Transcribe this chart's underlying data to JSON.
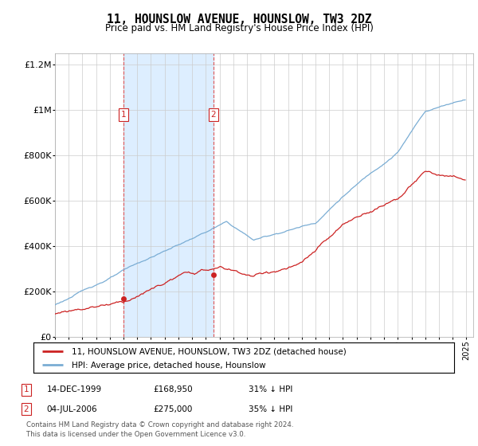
{
  "title": "11, HOUNSLOW AVENUE, HOUNSLOW, TW3 2DZ",
  "subtitle": "Price paid vs. HM Land Registry's House Price Index (HPI)",
  "legend_line1": "11, HOUNSLOW AVENUE, HOUNSLOW, TW3 2DZ (detached house)",
  "legend_line2": "HPI: Average price, detached house, Hounslow",
  "footer_line1": "Contains HM Land Registry data © Crown copyright and database right 2024.",
  "footer_line2": "This data is licensed under the Open Government Licence v3.0.",
  "sale1_date": "14-DEC-1999",
  "sale1_price": "£168,950",
  "sale1_hpi": "31% ↓ HPI",
  "sale2_date": "04-JUL-2006",
  "sale2_price": "£275,000",
  "sale2_hpi": "35% ↓ HPI",
  "sale1_x": 2000.0,
  "sale1_y": 168950,
  "sale2_x": 2006.55,
  "sale2_y": 275000,
  "hpi_color": "#7aadd4",
  "price_color": "#cc2222",
  "shade_color": "#ddeeff",
  "grid_color": "#cccccc",
  "background_color": "#ffffff",
  "ylim": [
    0,
    1250000
  ],
  "xlim": [
    1995,
    2025.5
  ],
  "yticks": [
    0,
    200000,
    400000,
    600000,
    800000,
    1000000,
    1200000
  ],
  "ytick_labels": [
    "£0",
    "£200K",
    "£400K",
    "£600K",
    "£800K",
    "£1M",
    "£1.2M"
  ]
}
